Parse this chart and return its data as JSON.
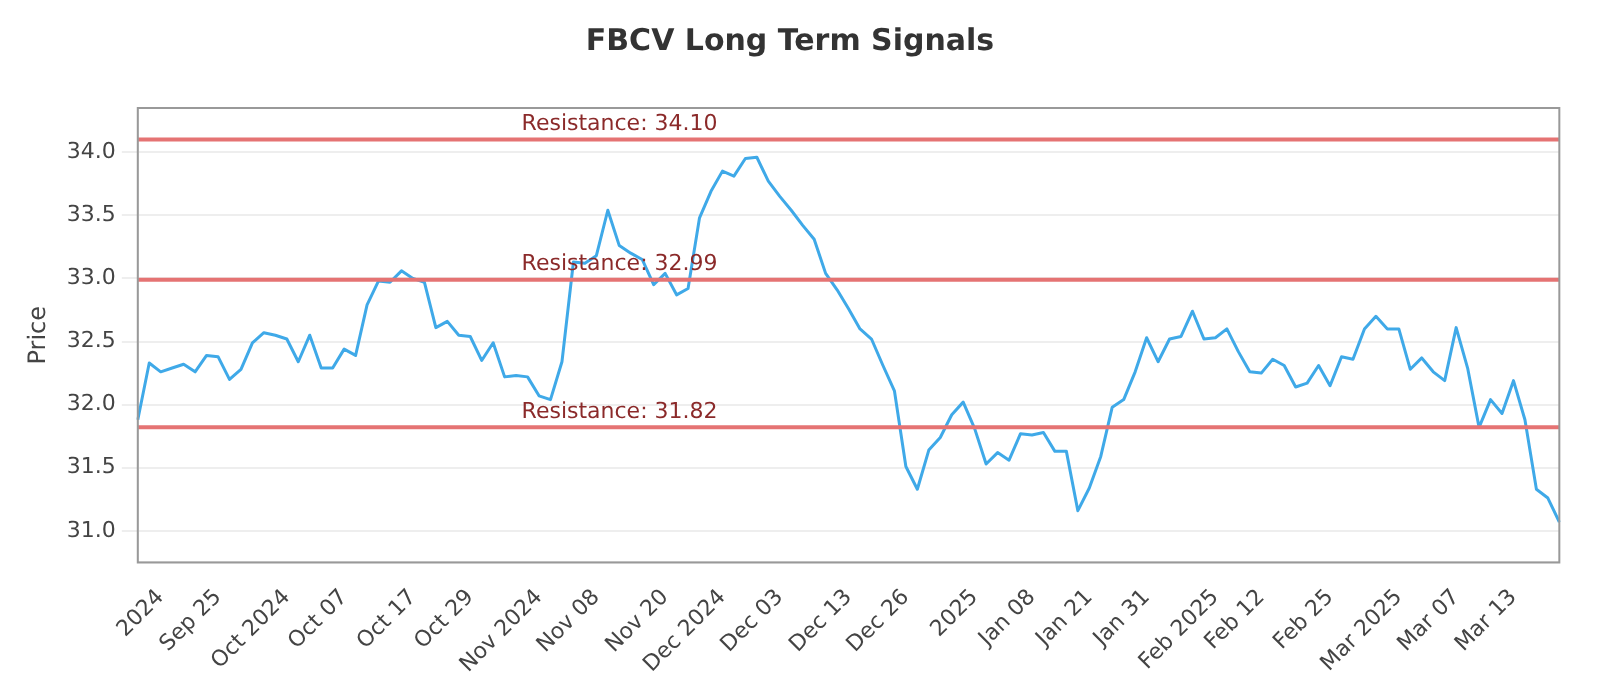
{
  "chart_data": {
    "type": "line",
    "title": "FBCV Long Term Signals",
    "ylabel": "Price",
    "categories": [
      null,
      null,
      "2024",
      null,
      null,
      null,
      null,
      "Sep 25",
      null,
      null,
      null,
      null,
      null,
      "Oct 2024",
      null,
      null,
      null,
      null,
      "Oct 07",
      null,
      null,
      null,
      null,
      null,
      "Oct 17",
      null,
      null,
      null,
      null,
      "Oct 29",
      null,
      null,
      null,
      null,
      null,
      "Nov 2024",
      null,
      null,
      null,
      null,
      "Nov 08",
      null,
      null,
      null,
      null,
      null,
      "Nov 20",
      null,
      null,
      null,
      null,
      "Dec 2024",
      null,
      null,
      null,
      null,
      "Dec 03",
      null,
      null,
      null,
      null,
      null,
      "Dec 13",
      null,
      null,
      null,
      null,
      "Dec 26",
      null,
      null,
      null,
      null,
      null,
      "2025",
      null,
      null,
      null,
      null,
      "Jan 08",
      null,
      null,
      null,
      null,
      "Jan 21",
      null,
      null,
      null,
      null,
      "Jan 31",
      null,
      null,
      null,
      null,
      null,
      "Feb 2025",
      null,
      null,
      null,
      "Feb 12",
      null,
      null,
      null,
      null,
      null,
      "Feb 25",
      null,
      null,
      null,
      null,
      null,
      "Mar 2025",
      null,
      null,
      null,
      null,
      "Mar 07",
      null,
      null,
      null,
      null,
      "Mar 13",
      null,
      null,
      null,
      null
    ],
    "series": [
      {
        "color": "#3fa9e8",
        "values": [
          31.88,
          32.33,
          32.26,
          32.29,
          32.32,
          32.26,
          32.39,
          32.38,
          32.2,
          32.28,
          32.49,
          32.57,
          32.55,
          32.52,
          32.34,
          32.55,
          32.29,
          32.29,
          32.44,
          32.39,
          32.79,
          32.98,
          32.97,
          33.06,
          33.0,
          32.97,
          32.61,
          32.66,
          32.55,
          32.54,
          32.35,
          32.49,
          32.22,
          32.23,
          32.22,
          32.07,
          32.04,
          32.34,
          33.13,
          33.12,
          33.18,
          33.54,
          33.26,
          33.2,
          33.15,
          32.95,
          33.04,
          32.87,
          32.92,
          33.48,
          33.69,
          33.85,
          33.81,
          33.95,
          33.96,
          33.77,
          33.65,
          33.54,
          33.42,
          33.31,
          33.04,
          32.91,
          32.76,
          32.6,
          32.52,
          32.31,
          32.11,
          31.51,
          31.33,
          31.64,
          31.74,
          31.92,
          32.02,
          31.81,
          31.53,
          31.62,
          31.56,
          31.77,
          31.76,
          31.78,
          31.63,
          31.63,
          31.16,
          31.34,
          31.59,
          31.98,
          32.04,
          32.26,
          32.53,
          32.34,
          32.52,
          32.54,
          32.74,
          32.52,
          32.53,
          32.6,
          32.42,
          32.26,
          32.25,
          32.36,
          32.31,
          32.14,
          32.17,
          32.31,
          32.15,
          32.38,
          32.36,
          32.6,
          32.7,
          32.6,
          32.6,
          32.28,
          32.37,
          32.26,
          32.19,
          32.61,
          32.29,
          31.82,
          32.04,
          31.93,
          32.19,
          31.88,
          31.33,
          31.26,
          31.07
        ]
      }
    ],
    "ylim": [
      30.75,
      34.35
    ],
    "yticks": [
      {
        "value": 31,
        "label": "31.0"
      },
      31.5,
      {
        "value": 32,
        "label": "32.0"
      },
      32.5,
      {
        "value": 33,
        "label": "33.0"
      },
      33.5,
      {
        "value": 34,
        "label": "34.0"
      }
    ],
    "grid": "y",
    "marker": "none",
    "line_style": "solid",
    "legend": false,
    "ref_lines": [
      {
        "axis": "y",
        "value": 34.1,
        "label": "Resistance: 34.10",
        "color": "#e57373"
      },
      {
        "axis": "y",
        "value": 32.99,
        "label": "Resistance: 32.99",
        "color": "#e57373"
      },
      {
        "axis": "y",
        "value": 31.82,
        "label": "Resistance: 31.82",
        "color": "#e57373"
      }
    ]
  }
}
